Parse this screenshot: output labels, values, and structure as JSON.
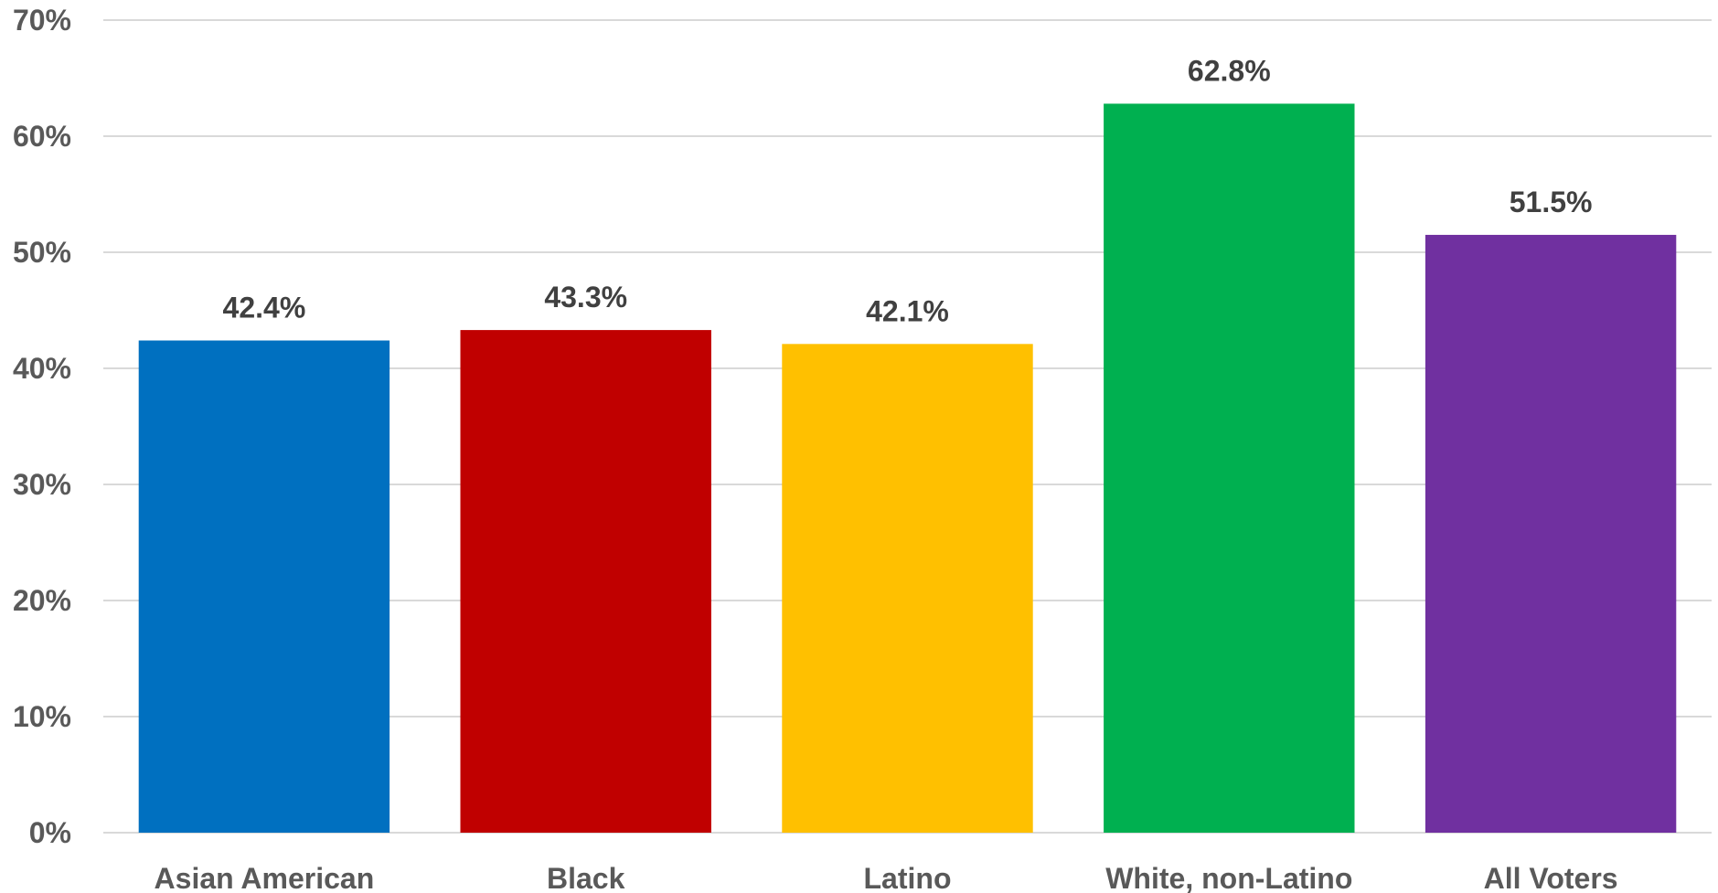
{
  "chart_data": {
    "type": "bar",
    "title": "",
    "xlabel": "",
    "ylabel": "",
    "categories": [
      "Asian American",
      "Black",
      "Latino",
      "White, non-Latino",
      "All Voters"
    ],
    "values": [
      42.4,
      43.3,
      42.1,
      62.8,
      51.5
    ],
    "value_labels": [
      "42.4%",
      "43.3%",
      "42.1%",
      "62.8%",
      "51.5%"
    ],
    "colors": [
      "#0070c0",
      "#c00000",
      "#ffc000",
      "#00b050",
      "#7030a0"
    ],
    "ylim": [
      0,
      70
    ],
    "yticks": [
      0,
      10,
      20,
      30,
      40,
      50,
      60,
      70
    ],
    "ytick_labels": [
      "0%",
      "10%",
      "20%",
      "30%",
      "40%",
      "50%",
      "60%",
      "70%"
    ],
    "grid": true,
    "legend": "none"
  }
}
